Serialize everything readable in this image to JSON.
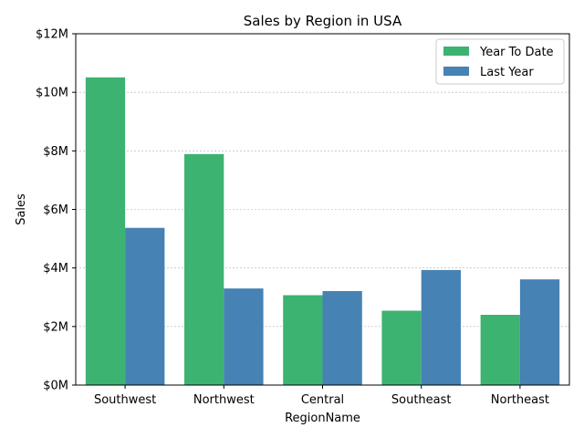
{
  "chart_data": {
    "type": "bar",
    "title": "Sales by Region in USA",
    "xlabel": "RegionName",
    "ylabel": "Sales",
    "categories": [
      "Southwest",
      "Northwest",
      "Central",
      "Southeast",
      "Northeast"
    ],
    "series": [
      {
        "name": "Year To Date",
        "color": "#3cb371",
        "values": [
          10510000,
          7890000,
          3070000,
          2540000,
          2400000
        ]
      },
      {
        "name": "Last Year",
        "color": "#4682b4",
        "values": [
          5370000,
          3300000,
          3210000,
          3930000,
          3610000
        ]
      }
    ],
    "ylim": [
      0,
      12000000
    ],
    "yticks": [
      0,
      2000000,
      4000000,
      6000000,
      8000000,
      10000000,
      12000000
    ],
    "ytick_labels": [
      "$0M",
      "$2M",
      "$4M",
      "$6M",
      "$8M",
      "$10M",
      "$12M"
    ],
    "grid": true,
    "legend_position": "top-right"
  }
}
